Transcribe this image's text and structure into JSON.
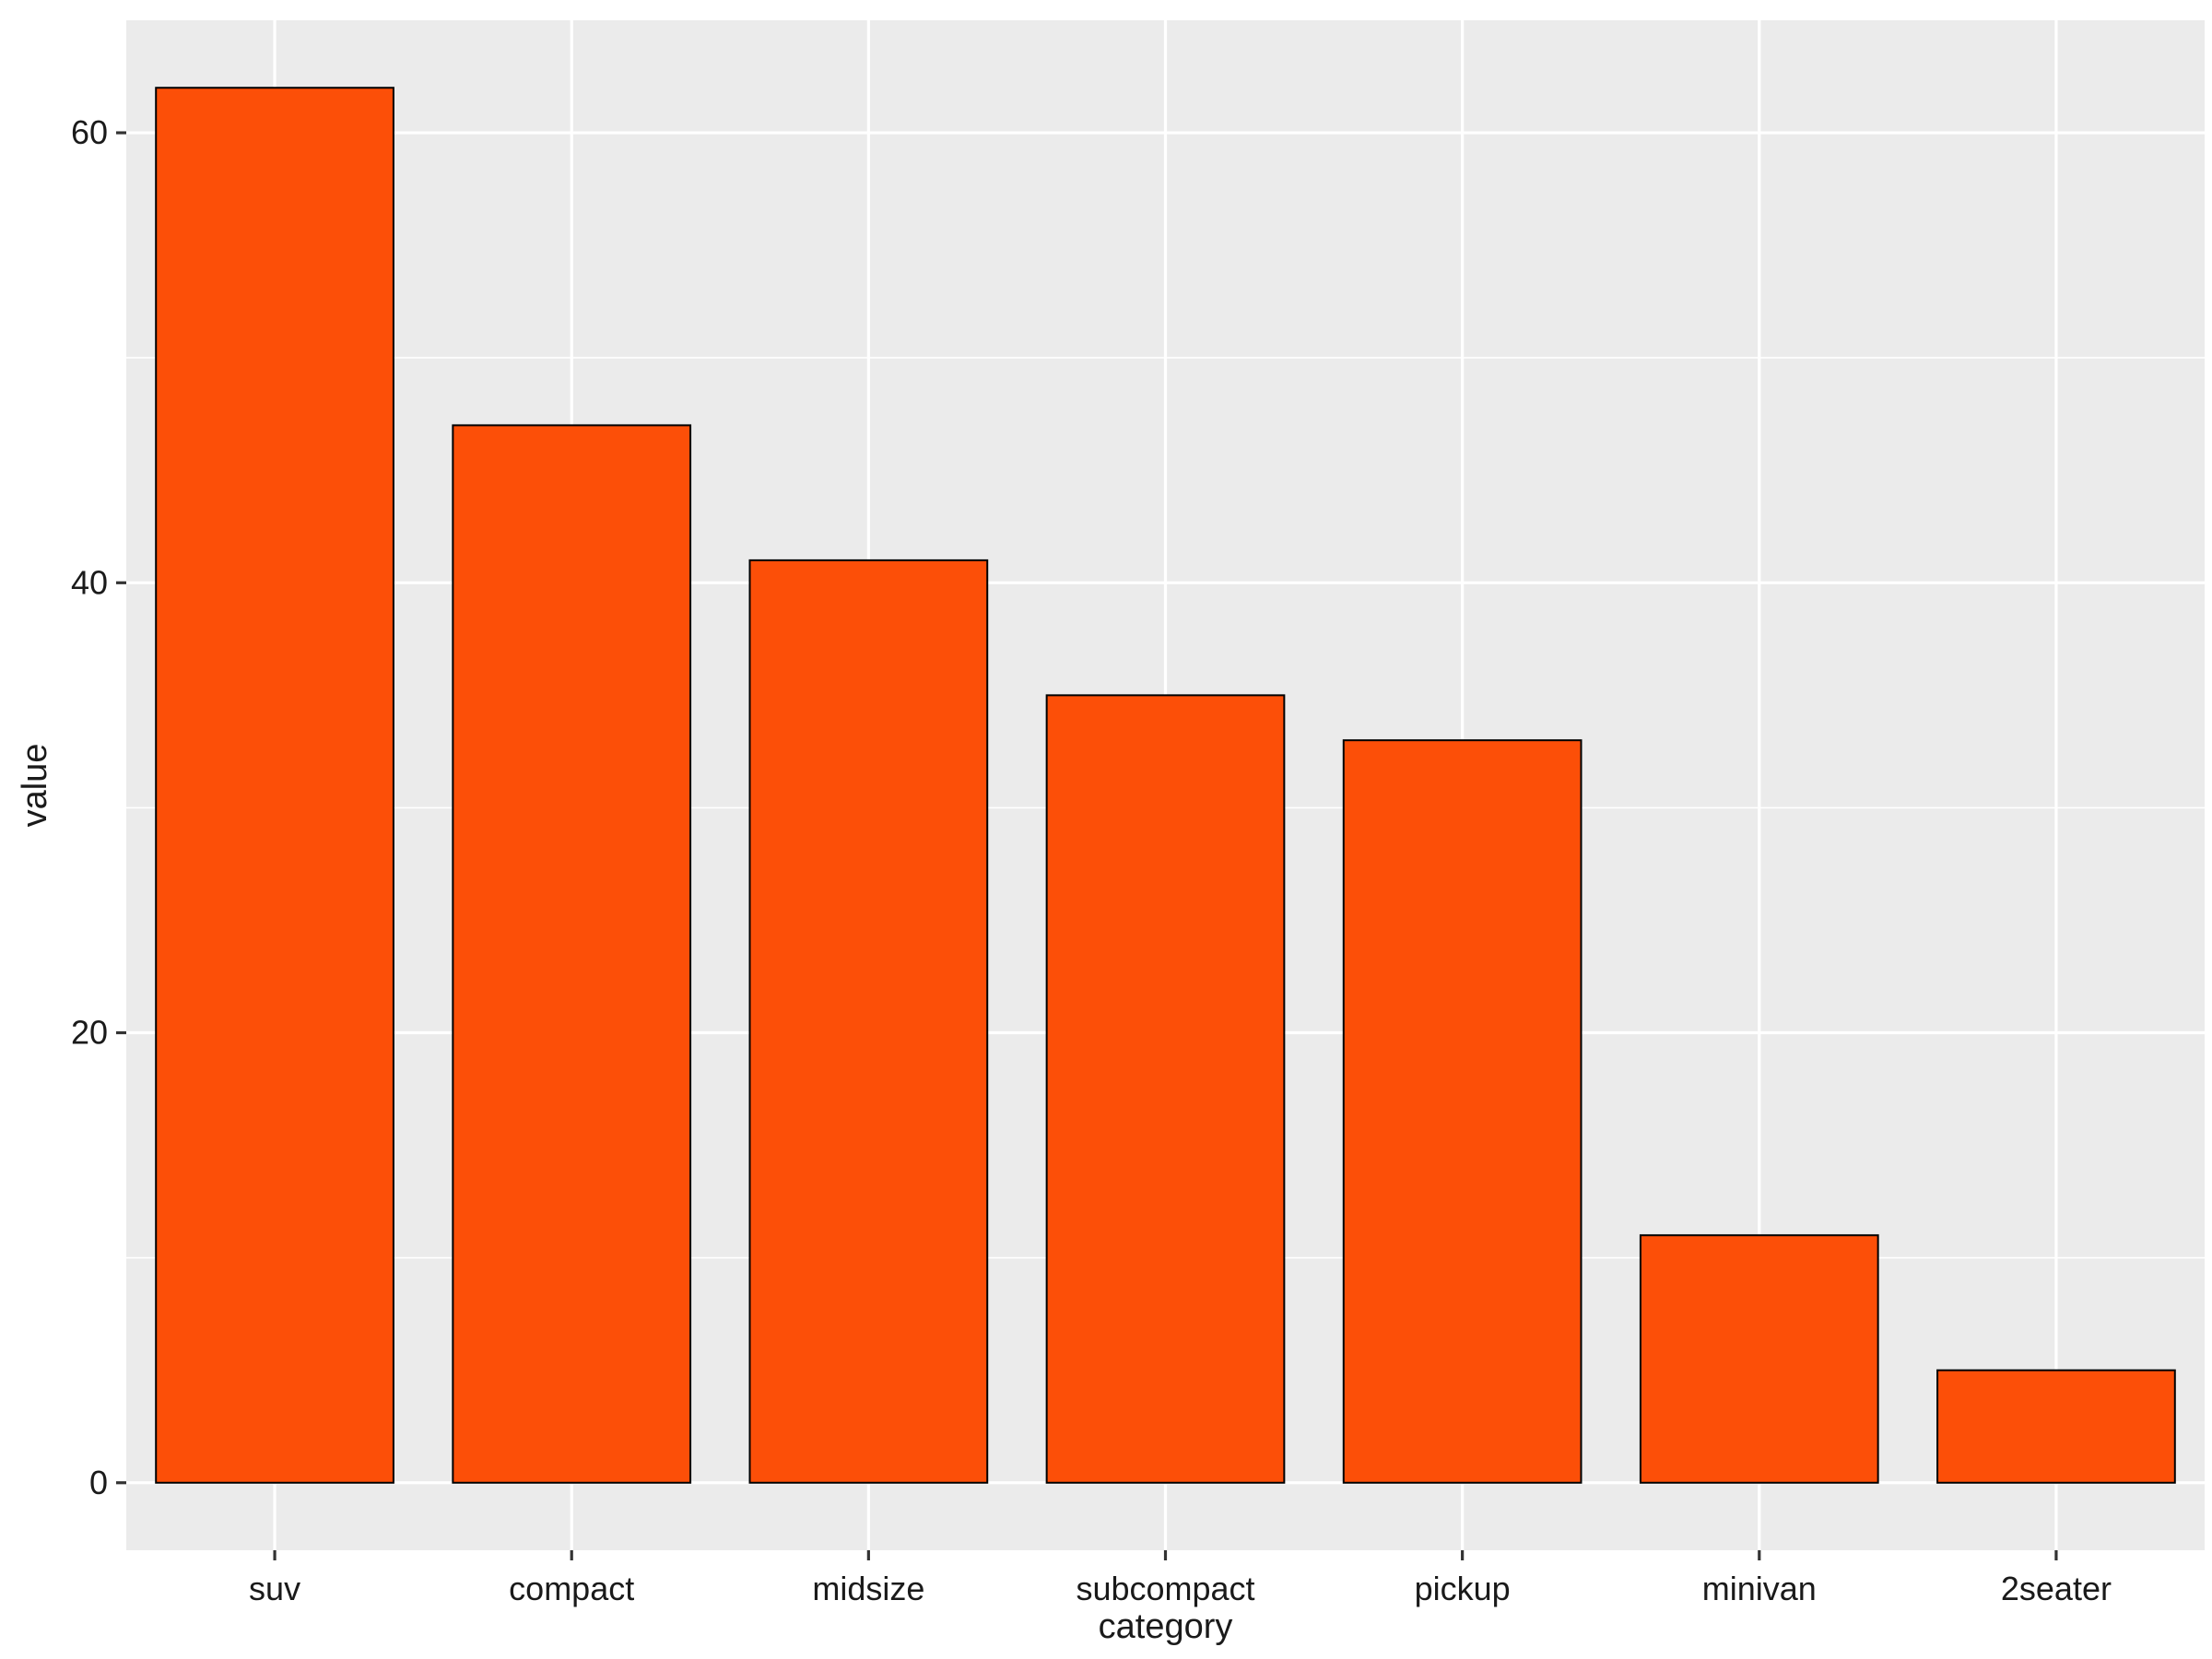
{
  "chart_data": {
    "type": "bar",
    "title": "",
    "xlabel": "category",
    "ylabel": "value",
    "categories": [
      "suv",
      "compact",
      "midsize",
      "subcompact",
      "pickup",
      "minivan",
      "2seater"
    ],
    "values": [
      62,
      47,
      41,
      35,
      33,
      11,
      5
    ],
    "ylim": [
      -3,
      65
    ],
    "yticks": [
      0,
      20,
      40,
      60
    ],
    "grid": true,
    "legend": "none",
    "colors": {
      "bar_fill": "#FC4F08",
      "bar_stroke": "#000000",
      "panel_background": "#EBEBEB",
      "grid_line": "#FFFFFF"
    }
  }
}
